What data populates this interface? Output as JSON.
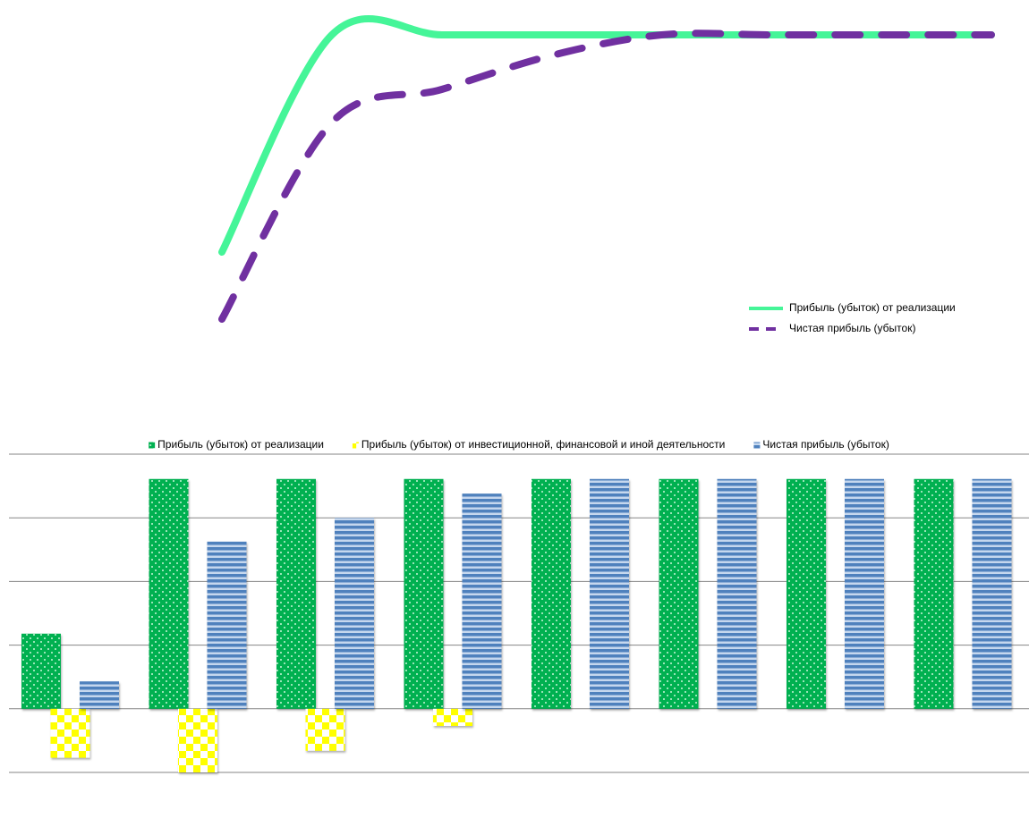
{
  "chart_data": [
    {
      "type": "line",
      "categories": [
        null,
        null,
        null,
        null,
        null,
        null,
        null,
        null
      ],
      "ylim": [
        0,
        4
      ],
      "legend": "lower right",
      "series": [
        {
          "name": "Прибыль (убыток) от реализации",
          "color": "#45f598",
          "dash": false,
          "values": [
            1.18,
            3.61,
            3.61,
            3.61,
            3.61,
            3.61,
            3.61,
            3.61
          ]
        },
        {
          "name": "Чистая прибыль (убыток)",
          "color": "#7030a0",
          "dash": true,
          "values": [
            0.43,
            2.63,
            3.0,
            3.38,
            3.61,
            3.61,
            3.61,
            3.61
          ]
        }
      ]
    },
    {
      "type": "bar",
      "categories": [
        null,
        null,
        null,
        null,
        null,
        null,
        null,
        null
      ],
      "ylim": [
        -1,
        4
      ],
      "yticks": [
        -1,
        0,
        1,
        2,
        3,
        4
      ],
      "grid": true,
      "legend": "top",
      "series": [
        {
          "name": "Прибыль (убыток) от реализации",
          "color": "#00b050",
          "pattern": "dots",
          "values": [
            1.18,
            3.61,
            3.61,
            3.61,
            3.61,
            3.61,
            3.61,
            3.61
          ]
        },
        {
          "name": "Прибыль (убыток) от инвестиционной, финансовой и иной деятельности",
          "color": "#ffff00",
          "pattern": "checker",
          "values": [
            -0.77,
            -1.0,
            -0.66,
            -0.27,
            null,
            null,
            null,
            null
          ]
        },
        {
          "name": "Чистая прибыль (убыток)",
          "color": "#4f81bd",
          "pattern": "stripes",
          "values": [
            0.43,
            2.63,
            3.0,
            3.38,
            3.61,
            3.61,
            3.61,
            3.61
          ]
        }
      ]
    }
  ]
}
